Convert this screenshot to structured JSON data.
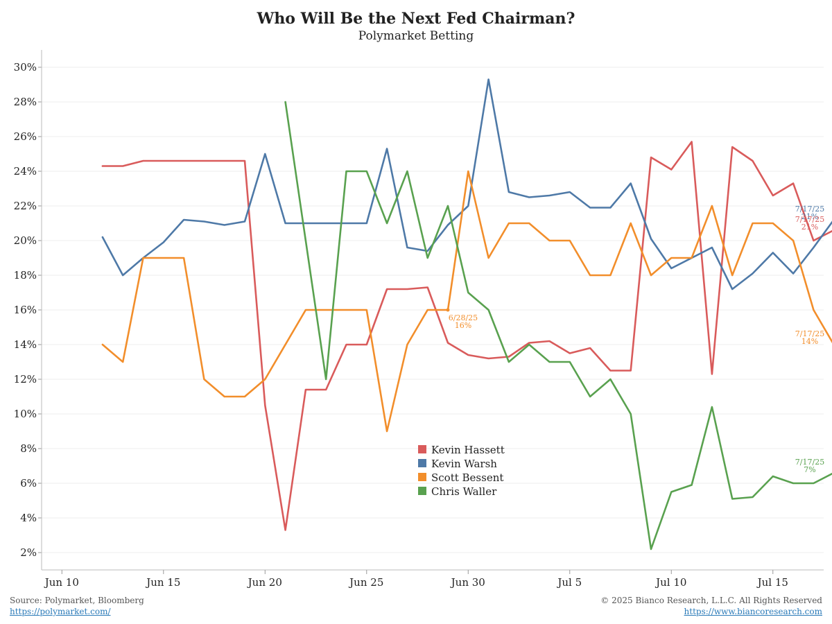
{
  "header": {
    "title": "Who Will Be the Next Fed Chairman?",
    "subtitle": "Polymarket Betting"
  },
  "footer": {
    "source": "Source: Polymarket, Bloomberg",
    "source_url": "https://polymarket.com/",
    "copyright": "© 2025 Bianco Research, L.L.C. All Rights Reserved",
    "site_url": "https://www.biancoresearch.com"
  },
  "chart_data": {
    "type": "line",
    "title": "Who Will Be the Next Fed Chairman?",
    "subtitle": "Polymarket Betting",
    "ylim": [
      1,
      31
    ],
    "xlim": [
      0,
      38.5
    ],
    "yticks": [
      2,
      4,
      6,
      8,
      10,
      12,
      14,
      16,
      18,
      20,
      22,
      24,
      26,
      28,
      30
    ],
    "ytick_suffix": "%",
    "grid": true,
    "legend_position": "bottom-center",
    "xticks": [
      {
        "x": 1,
        "label": "Jun 10"
      },
      {
        "x": 6,
        "label": "Jun 15"
      },
      {
        "x": 11,
        "label": "Jun 20"
      },
      {
        "x": 16,
        "label": "Jun 25"
      },
      {
        "x": 21,
        "label": "Jun 30"
      },
      {
        "x": 26,
        "label": "Jul 5"
      },
      {
        "x": 31,
        "label": "Jul 10"
      },
      {
        "x": 36,
        "label": "Jul 15"
      }
    ],
    "series": [
      {
        "name": "Kevin Hassett",
        "color": "#d95b5b",
        "points": [
          [
            3,
            24.3
          ],
          [
            4,
            24.3
          ],
          [
            5,
            24.6
          ],
          [
            6,
            24.6
          ],
          [
            7,
            24.6
          ],
          [
            8,
            24.6
          ],
          [
            9,
            24.6
          ],
          [
            10,
            24.6
          ],
          [
            11,
            10.5
          ],
          [
            12,
            3.3
          ],
          [
            13,
            11.4
          ],
          [
            14,
            11.4
          ],
          [
            15,
            14
          ],
          [
            16,
            14
          ],
          [
            17,
            17.2
          ],
          [
            18,
            17.2
          ],
          [
            19,
            17.3
          ],
          [
            20,
            14.1
          ],
          [
            21,
            13.4
          ],
          [
            22,
            13.2
          ],
          [
            23,
            13.3
          ],
          [
            24,
            14.1
          ],
          [
            25,
            14.2
          ],
          [
            26,
            13.5
          ],
          [
            27,
            13.8
          ],
          [
            28,
            12.5
          ],
          [
            29,
            12.5
          ],
          [
            30,
            24.8
          ],
          [
            31,
            24.1
          ],
          [
            32,
            25.7
          ],
          [
            33,
            12.3
          ],
          [
            34,
            25.4
          ],
          [
            35,
            24.6
          ],
          [
            36,
            22.6
          ],
          [
            37,
            23.3
          ],
          [
            38,
            20
          ],
          [
            39,
            20.6
          ]
        ]
      },
      {
        "name": "Kevin Warsh",
        "color": "#4e79a7",
        "points": [
          [
            3,
            20.2
          ],
          [
            4,
            18
          ],
          [
            5,
            19
          ],
          [
            6,
            19.9
          ],
          [
            7,
            21.2
          ],
          [
            8,
            21.1
          ],
          [
            9,
            20.9
          ],
          [
            10,
            21.1
          ],
          [
            11,
            25
          ],
          [
            12,
            21
          ],
          [
            13,
            21
          ],
          [
            14,
            21
          ],
          [
            15,
            21
          ],
          [
            16,
            21
          ],
          [
            17,
            25.3
          ],
          [
            18,
            19.6
          ],
          [
            19,
            19.4
          ],
          [
            20,
            20.9
          ],
          [
            21,
            22
          ],
          [
            22,
            29.3
          ],
          [
            23,
            22.8
          ],
          [
            24,
            22.5
          ],
          [
            25,
            22.6
          ],
          [
            26,
            22.8
          ],
          [
            27,
            21.9
          ],
          [
            28,
            21.9
          ],
          [
            29,
            23.3
          ],
          [
            30,
            20.1
          ],
          [
            31,
            18.4
          ],
          [
            32,
            19
          ],
          [
            33,
            19.6
          ],
          [
            34,
            17.2
          ],
          [
            35,
            18.1
          ],
          [
            36,
            19.3
          ],
          [
            37,
            18.1
          ],
          [
            38,
            19.6
          ],
          [
            39,
            21.2
          ]
        ]
      },
      {
        "name": "Scott Bessent",
        "color": "#f28e2b",
        "points": [
          [
            3,
            14
          ],
          [
            4,
            13
          ],
          [
            5,
            19
          ],
          [
            6,
            19
          ],
          [
            7,
            19
          ],
          [
            8,
            12
          ],
          [
            9,
            11
          ],
          [
            10,
            11
          ],
          [
            11,
            12
          ],
          [
            13,
            16
          ],
          [
            14,
            16
          ],
          [
            15,
            16
          ],
          [
            16,
            16
          ],
          [
            17,
            9
          ],
          [
            18,
            14
          ],
          [
            19,
            16
          ],
          [
            20,
            16
          ],
          [
            21,
            24
          ],
          [
            22,
            19
          ],
          [
            23,
            21
          ],
          [
            24,
            21
          ],
          [
            25,
            20
          ],
          [
            26,
            20
          ],
          [
            27,
            18
          ],
          [
            28,
            18
          ],
          [
            29,
            21
          ],
          [
            30,
            18
          ],
          [
            31,
            19
          ],
          [
            32,
            19
          ],
          [
            33,
            22
          ],
          [
            34,
            18
          ],
          [
            35,
            21
          ],
          [
            36,
            21
          ],
          [
            37,
            20
          ],
          [
            38,
            16
          ],
          [
            39,
            14
          ]
        ]
      },
      {
        "name": "Chris Waller",
        "color": "#59a14f",
        "points": [
          [
            12,
            28
          ],
          [
            13,
            20
          ],
          [
            14,
            12
          ],
          [
            15,
            24
          ],
          [
            16,
            24
          ],
          [
            17,
            21
          ],
          [
            18,
            24
          ],
          [
            19,
            19
          ],
          [
            20,
            22
          ],
          [
            21,
            17
          ],
          [
            22,
            16
          ],
          [
            23,
            13
          ],
          [
            24,
            14
          ],
          [
            25,
            13
          ],
          [
            26,
            13
          ],
          [
            27,
            11
          ],
          [
            28,
            12
          ],
          [
            29,
            10
          ],
          [
            30,
            2.2
          ],
          [
            31,
            5.5
          ],
          [
            32,
            5.9
          ],
          [
            33,
            10.4
          ],
          [
            34,
            5.1
          ],
          [
            35,
            5.2
          ],
          [
            36,
            6.4
          ],
          [
            37,
            6
          ],
          [
            38,
            6
          ],
          [
            39,
            6.6
          ]
        ]
      }
    ],
    "annotations": [
      {
        "series": "Scott Bessent",
        "x": 20,
        "y": 16,
        "date": "6/28/25",
        "value": "16%"
      },
      {
        "series": "Kevin Warsh",
        "x": 39,
        "y": 21.2,
        "date": "7/17/25",
        "value": "21%"
      },
      {
        "series": "Kevin Hassett",
        "x": 39,
        "y": 20.6,
        "date": "7/17/25",
        "value": "21%"
      },
      {
        "series": "Scott Bessent",
        "x": 39,
        "y": 14,
        "date": "7/17/25",
        "value": "14%"
      },
      {
        "series": "Chris Waller",
        "x": 39,
        "y": 6.6,
        "date": "7/17/25",
        "value": "7%"
      }
    ]
  }
}
